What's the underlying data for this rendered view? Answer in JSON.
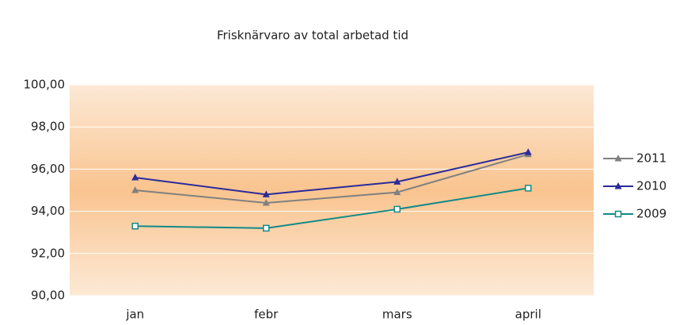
{
  "chart_data": {
    "type": "line",
    "title": "Frisknärvaro av total arbetad tid",
    "categories": [
      "jan",
      "febr",
      "mars",
      "april"
    ],
    "series": [
      {
        "name": "2011",
        "color": "#808080",
        "marker": "triangle",
        "values": [
          95.0,
          94.4,
          94.9,
          96.7
        ]
      },
      {
        "name": "2010",
        "color": "#2b2b9a",
        "marker": "triangle",
        "values": [
          95.6,
          94.8,
          95.4,
          96.8
        ]
      },
      {
        "name": "2009",
        "color": "#138a87",
        "marker": "square-open",
        "values": [
          93.3,
          93.2,
          94.1,
          95.1
        ]
      }
    ],
    "ylim": [
      90,
      100
    ],
    "yticks": [
      {
        "value": 90,
        "label": "90,00"
      },
      {
        "value": 92,
        "label": "92,00"
      },
      {
        "value": 94,
        "label": "94,00"
      },
      {
        "value": 96,
        "label": "96,00"
      },
      {
        "value": 98,
        "label": "98,00"
      },
      {
        "value": 100,
        "label": "100,00"
      }
    ],
    "grid": true,
    "legend": "right"
  }
}
